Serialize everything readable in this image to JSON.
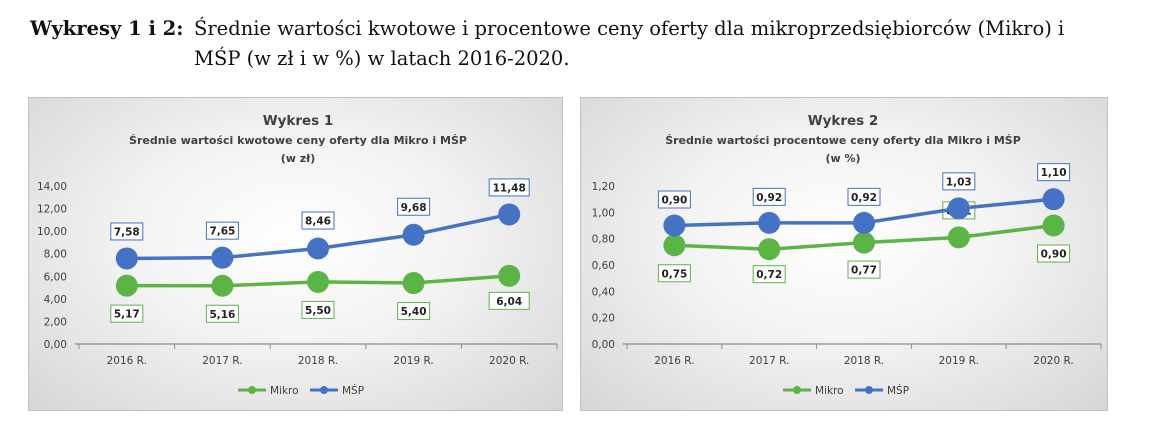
{
  "caption": {
    "label": "Wykresy 1 i 2:",
    "text": "Średnie wartości kwotowe i procentowe ceny oferty dla mikroprzedsiębiorców (Mikro) i MŚP (w zł i w %) w latach 2016-2020."
  },
  "colors": {
    "mikro": "#5BB545",
    "msp": "#4472C4",
    "axis": "#8c8c8c"
  },
  "chart_data": [
    {
      "type": "line",
      "title": "Wykres 1",
      "subtitle": "Średnie wartości kwotowe ceny oferty dla Mikro i MŚP",
      "subtitle2": "(w zł)",
      "categories": [
        "2016 R.",
        "2017 R.",
        "2018 R.",
        "2019 R.",
        "2020 R."
      ],
      "yticks": [
        "0,00",
        "2,00",
        "4,00",
        "6,00",
        "8,00",
        "10,00",
        "12,00",
        "14,00"
      ],
      "ylim": [
        0,
        14
      ],
      "series": [
        {
          "name": "Mikro",
          "values": [
            5.17,
            5.16,
            5.5,
            5.4,
            6.04
          ],
          "labels": [
            "5,17",
            "5,16",
            "5,50",
            "5,40",
            "6,04"
          ]
        },
        {
          "name": "MŚP",
          "values": [
            7.58,
            7.65,
            8.46,
            9.68,
            11.48
          ],
          "labels": [
            "7,58",
            "7,65",
            "8,46",
            "9,68",
            "11,48"
          ]
        }
      ],
      "legend_position": "bottom",
      "grid": false
    },
    {
      "type": "line",
      "title": "Wykres 2",
      "subtitle": "Średnie wartości procentowe ceny oferty dla Mikro i MŚP",
      "subtitle2": "(w %)",
      "categories": [
        "2016 R.",
        "2017 R.",
        "2018 R.",
        "2019 R.",
        "2020 R."
      ],
      "yticks": [
        "0,00",
        "0,20",
        "0,40",
        "0,60",
        "0,80",
        "1,00",
        "1,20"
      ],
      "ylim": [
        0,
        1.2
      ],
      "series": [
        {
          "name": "Mikro",
          "values": [
            0.75,
            0.72,
            0.77,
            0.81,
            0.9
          ],
          "labels": [
            "0,75",
            "0,72",
            "0,77",
            "0,81",
            "0,90"
          ]
        },
        {
          "name": "MŚP",
          "values": [
            0.9,
            0.92,
            0.92,
            1.03,
            1.1
          ],
          "labels": [
            "0,90",
            "0,92",
            "0,92",
            "1,03",
            "1,10"
          ]
        }
      ],
      "legend_position": "bottom",
      "grid": false
    }
  ]
}
